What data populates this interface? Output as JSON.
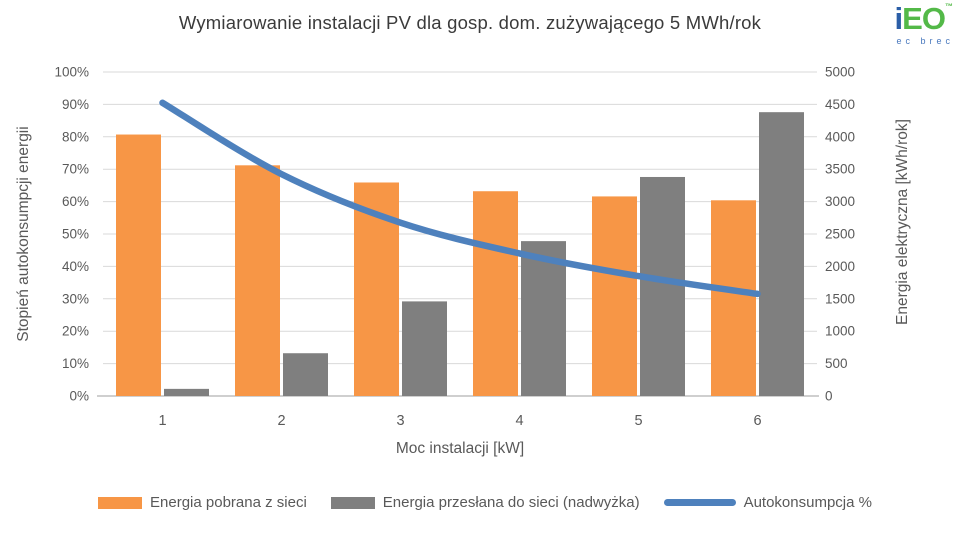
{
  "header": {
    "title": "Wymiarowanie instalacji PV dla gosp. dom. zużywającego 5 MWh/rok",
    "logo": {
      "text_i": "i",
      "text_eo": "EO",
      "tm": "™",
      "subtext": "ec brec",
      "blue": "#2b5ea7",
      "green": "#53b948"
    }
  },
  "chart_data": {
    "type": "bar",
    "subtype": "combo-bar-line-dual-axis",
    "title": "Wymiarowanie instalacji PV dla gosp. dom. zużywającego 5 MWh/rok",
    "categories": [
      "1",
      "2",
      "3",
      "4",
      "5",
      "6"
    ],
    "xlabel": "Moc instalacji [kW]",
    "axes": {
      "left": {
        "label": "Stopień autokonsumpcji energii",
        "min": 0,
        "max": 100,
        "step": 10,
        "suffix": "%"
      },
      "right": {
        "label": "Energia elektryczna [kWh/rok]",
        "min": 0,
        "max": 5000,
        "step": 500,
        "suffix": ""
      }
    },
    "grid": true,
    "legend_position": "bottom",
    "series": [
      {
        "name": "Energia pobrana z sieci",
        "type": "bar",
        "axis": "right",
        "color": "#F79646",
        "values": [
          4035,
          3560,
          3295,
          3160,
          3080,
          3020
        ]
      },
      {
        "name": "Energia przesłana do sieci (nadwyżka)",
        "type": "bar",
        "axis": "right",
        "color": "#7F7F7F",
        "values": [
          110,
          660,
          1460,
          2390,
          3380,
          4380
        ]
      },
      {
        "name": "Autokonsumpcja %",
        "type": "line",
        "axis": "left",
        "color": "#4E81BD",
        "values": [
          90.5,
          68.5,
          53.5,
          44,
          37,
          31.5
        ]
      }
    ],
    "colors": {
      "grid": "#D9D9D9",
      "axis_line": "#BFBFBF",
      "tick_text": "#595959",
      "title_text": "#3B3B3B"
    }
  }
}
